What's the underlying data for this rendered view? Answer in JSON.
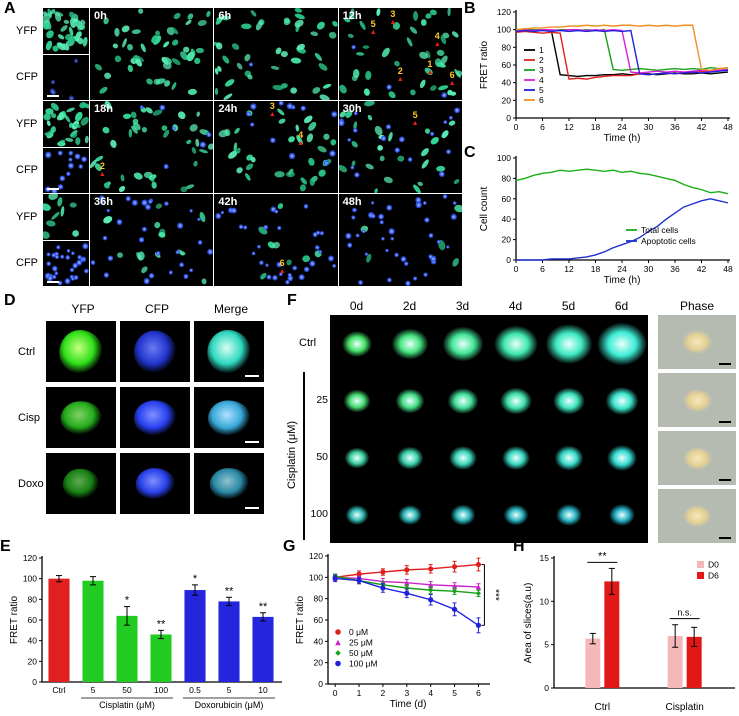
{
  "panel_labels": {
    "A": "A",
    "B": "B",
    "C": "C",
    "D": "D",
    "E": "E",
    "F": "F",
    "G": "G",
    "H": "H"
  },
  "panelA": {
    "side_labels": [
      "YFP",
      "CFP",
      "YFP",
      "CFP",
      "YFP",
      "CFP"
    ],
    "thumbs": [
      {
        "green": 38,
        "blue": 0,
        "seed": 11
      },
      {
        "green": 0,
        "blue": 5,
        "seed": 12,
        "dim": true
      },
      {
        "green": 30,
        "blue": 0,
        "seed": 13
      },
      {
        "green": 0,
        "blue": 14,
        "seed": 14
      },
      {
        "green": 9,
        "blue": 0,
        "seed": 15
      },
      {
        "green": 0,
        "blue": 30,
        "seed": 16
      }
    ],
    "cells": [
      {
        "time": "0h",
        "green": 46,
        "blue": 0,
        "seed": 1,
        "markers": []
      },
      {
        "time": "6h",
        "green": 44,
        "blue": 1,
        "seed": 2,
        "markers": []
      },
      {
        "time": "12h",
        "green": 42,
        "blue": 3,
        "seed": 3,
        "markers": [
          {
            "n": "3",
            "x": 0.44,
            "y": 0.2
          },
          {
            "n": "5",
            "x": 0.28,
            "y": 0.3
          },
          {
            "n": "4",
            "x": 0.8,
            "y": 0.44
          },
          {
            "n": "2",
            "x": 0.5,
            "y": 0.82
          },
          {
            "n": "1",
            "x": 0.74,
            "y": 0.74
          },
          {
            "n": "6",
            "x": 0.92,
            "y": 0.86
          }
        ]
      },
      {
        "time": "18h",
        "green": 40,
        "blue": 6,
        "seed": 4,
        "markers": [
          {
            "n": "2",
            "x": 0.1,
            "y": 0.84
          }
        ]
      },
      {
        "time": "24h",
        "green": 34,
        "blue": 12,
        "seed": 5,
        "markers": [
          {
            "n": "3",
            "x": 0.47,
            "y": 0.18
          },
          {
            "n": "4",
            "x": 0.7,
            "y": 0.5
          }
        ]
      },
      {
        "time": "30h",
        "green": 27,
        "blue": 18,
        "seed": 6,
        "markers": [
          {
            "n": "5",
            "x": 0.62,
            "y": 0.28
          }
        ]
      },
      {
        "time": "36h",
        "green": 14,
        "blue": 30,
        "seed": 7,
        "markers": []
      },
      {
        "time": "42h",
        "green": 8,
        "blue": 34,
        "seed": 8,
        "markers": [
          {
            "n": "6",
            "x": 0.55,
            "y": 0.88
          }
        ]
      },
      {
        "time": "48h",
        "green": 5,
        "blue": 38,
        "seed": 9,
        "markers": []
      }
    ]
  },
  "panelD": {
    "headers": [
      "YFP",
      "CFP",
      "Merge"
    ],
    "rows": [
      {
        "label": "Ctrl",
        "images": [
          {
            "c": "#2ee018",
            "glow": "#c8ff80",
            "w": 0.62,
            "h": 0.72,
            "op": 1
          },
          {
            "c": "#2438d8",
            "glow": "#7080ff",
            "w": 0.6,
            "h": 0.7,
            "op": 0.95
          },
          {
            "c": "#2ed8c0",
            "glow": "#d8fff0",
            "w": 0.62,
            "h": 0.72,
            "op": 1
          }
        ]
      },
      {
        "label": "Cisp",
        "images": [
          {
            "c": "#28c020",
            "glow": "#90e870",
            "w": 0.58,
            "h": 0.55,
            "op": 0.9
          },
          {
            "c": "#2840f0",
            "glow": "#8090ff",
            "w": 0.6,
            "h": 0.58,
            "op": 1
          },
          {
            "c": "#38a8d8",
            "glow": "#b0e0ff",
            "w": 0.6,
            "h": 0.58,
            "op": 1
          }
        ]
      },
      {
        "label": "Doxo",
        "images": [
          {
            "c": "#1e9818",
            "glow": "#70c860",
            "w": 0.52,
            "h": 0.5,
            "op": 0.85
          },
          {
            "c": "#2840e8",
            "glow": "#8090ff",
            "w": 0.55,
            "h": 0.52,
            "op": 1
          },
          {
            "c": "#2f98b8",
            "glow": "#a0d8e8",
            "w": 0.55,
            "h": 0.52,
            "op": 0.9
          }
        ]
      }
    ]
  },
  "panelF": {
    "col_headers": [
      "0d",
      "2d",
      "3d",
      "4d",
      "5d",
      "6d"
    ],
    "phase_header": "Phase",
    "ctrl_label": "Ctrl",
    "group_label": "Cisplatin (μM)",
    "dose_labels": [
      "25",
      "50",
      "100"
    ],
    "rows": [
      {
        "sizes": [
          30,
          37,
          41,
          44,
          47,
          50
        ],
        "colors": [
          "#46e26a",
          "#44e47e",
          "#42e696",
          "#40e8ae",
          "#3eeac2",
          "#3cecd4"
        ]
      },
      {
        "sizes": [
          27,
          29,
          31,
          32,
          32,
          33
        ],
        "colors": [
          "#44da6e",
          "#42dc84",
          "#40de98",
          "#3ee0aa",
          "#3ce2bc",
          "#3ae4ca"
        ]
      },
      {
        "sizes": [
          25,
          27,
          28,
          28,
          29,
          30
        ],
        "colors": [
          "#3ed0a0",
          "#3cd2ac",
          "#3ad4b6",
          "#38d6c0",
          "#36d8c8",
          "#34dad0"
        ]
      },
      {
        "sizes": [
          23,
          24,
          25,
          25,
          26,
          26
        ],
        "colors": [
          "#30b8b0",
          "#2eb6b4",
          "#2cb4b8",
          "#2ab2bc",
          "#28b0c0",
          "#26aec4"
        ]
      }
    ],
    "phase": {
      "bg": "#b6bbb2",
      "slice": "#e6d193",
      "sizes": [
        30,
        29,
        29,
        28
      ]
    }
  },
  "chart_data": [
    {
      "id": "B",
      "type": "line",
      "xlabel": "Time (h)",
      "ylabel": "FRET ratio",
      "xlim": [
        0,
        48
      ],
      "ylim": [
        0,
        120
      ],
      "xticks": [
        0,
        6,
        12,
        18,
        24,
        30,
        36,
        42,
        48
      ],
      "yticks": [
        0,
        20,
        40,
        60,
        80,
        100,
        120
      ],
      "x": [
        0,
        2,
        4,
        6,
        8,
        10,
        12,
        14,
        16,
        18,
        20,
        22,
        24,
        26,
        28,
        30,
        32,
        34,
        36,
        38,
        40,
        42,
        44,
        46,
        48
      ],
      "series": [
        {
          "name": "1",
          "color": "#000000",
          "values": [
            100,
            100,
            99,
            100,
            99,
            49,
            48,
            47,
            48,
            48,
            49,
            49,
            50,
            49,
            50,
            50,
            49,
            50,
            51,
            50,
            50,
            51,
            50,
            51,
            52
          ]
        },
        {
          "name": "2",
          "color": "#e02020",
          "values": [
            97,
            98,
            97,
            96,
            97,
            96,
            44,
            45,
            44,
            46,
            47,
            48,
            48,
            48,
            50,
            49,
            50,
            51,
            50,
            52,
            51,
            53,
            52,
            54,
            55
          ]
        },
        {
          "name": "3",
          "color": "#18a018",
          "values": [
            100,
            101,
            100,
            100,
            99,
            100,
            100,
            99,
            100,
            99,
            100,
            55,
            54,
            55,
            56,
            55,
            54,
            55,
            56,
            55,
            56,
            55,
            57,
            56,
            57
          ]
        },
        {
          "name": "4",
          "color": "#d820d8",
          "values": [
            99,
            100,
            99,
            100,
            100,
            99,
            100,
            100,
            99,
            100,
            99,
            100,
            99,
            52,
            51,
            52,
            53,
            52,
            53,
            52,
            53,
            54,
            53,
            54,
            55
          ]
        },
        {
          "name": "5",
          "color": "#2020dd",
          "values": [
            98,
            99,
            98,
            99,
            98,
            99,
            98,
            99,
            98,
            99,
            98,
            99,
            98,
            99,
            50,
            49,
            50,
            51,
            50,
            51,
            52,
            51,
            52,
            53,
            54
          ]
        },
        {
          "name": "6",
          "color": "#f09020",
          "values": [
            100,
            101,
            102,
            102,
            103,
            103,
            104,
            104,
            105,
            104,
            105,
            104,
            105,
            105,
            104,
            105,
            104,
            105,
            104,
            105,
            105,
            55,
            54,
            56,
            57
          ]
        }
      ]
    },
    {
      "id": "C",
      "type": "line",
      "xlabel": "Time (h)",
      "ylabel": "Cell count",
      "xlim": [
        0,
        48
      ],
      "ylim": [
        0,
        100
      ],
      "xticks": [
        0,
        6,
        12,
        18,
        24,
        30,
        36,
        42,
        48
      ],
      "yticks": [
        0,
        20,
        40,
        60,
        80,
        100
      ],
      "x": [
        0,
        2,
        4,
        6,
        8,
        10,
        12,
        14,
        16,
        18,
        20,
        22,
        24,
        26,
        28,
        30,
        32,
        34,
        36,
        38,
        40,
        42,
        44,
        46,
        48
      ],
      "series": [
        {
          "name": "Total cells",
          "color": "#18b018",
          "values": [
            78,
            80,
            83,
            85,
            86,
            88,
            87,
            88,
            89,
            88,
            87,
            88,
            86,
            87,
            85,
            84,
            82,
            80,
            78,
            74,
            71,
            69,
            66,
            67,
            65
          ]
        },
        {
          "name": "Apoptotic cells",
          "color": "#2030d0",
          "values": [
            0,
            0,
            0,
            0,
            1,
            1,
            1,
            2,
            3,
            5,
            8,
            12,
            15,
            18,
            22,
            28,
            33,
            40,
            46,
            52,
            55,
            58,
            60,
            58,
            56
          ]
        }
      ]
    },
    {
      "id": "E",
      "type": "bar",
      "ylabel": "FRET ratio",
      "ylim": [
        0,
        120
      ],
      "yticks": [
        0,
        20,
        40,
        60,
        80,
        100,
        120
      ],
      "categories": [
        "Ctrl",
        "5",
        "50",
        "100",
        "0.5",
        "5",
        "10"
      ],
      "values": [
        100,
        98,
        64,
        46,
        89,
        78,
        63
      ],
      "errors": [
        3,
        4,
        9,
        4,
        5,
        4,
        4
      ],
      "colors": [
        "#e02020",
        "#22cc22",
        "#22cc22",
        "#22cc22",
        "#2525dd",
        "#2525dd",
        "#2525dd"
      ],
      "sig": [
        "",
        "",
        "*",
        "**",
        "*",
        "**",
        "**"
      ],
      "group_labels": [
        {
          "label": "Cisplatin (μM)",
          "from": 1,
          "to": 3
        },
        {
          "label": "Doxorubicin (μM)",
          "from": 4,
          "to": 6
        }
      ]
    },
    {
      "id": "G",
      "type": "line",
      "xlabel": "Time (d)",
      "ylabel": "FRET ratio",
      "xlim": [
        -0.3,
        6.4
      ],
      "ylim": [
        0,
        120
      ],
      "xticks": [
        0,
        1,
        2,
        3,
        4,
        5,
        6
      ],
      "yticks": [
        0,
        20,
        40,
        60,
        80,
        100,
        120
      ],
      "x": [
        0,
        1,
        2,
        3,
        4,
        5,
        6
      ],
      "series": [
        {
          "name": "0 μM",
          "color": "#e02020",
          "marker": "circle",
          "values": [
            100,
            103,
            105,
            107,
            108,
            110,
            112
          ],
          "err": [
            3,
            3,
            3,
            4,
            4,
            5,
            6
          ]
        },
        {
          "name": "25 μM",
          "color": "#cc22cc",
          "marker": "triangle",
          "values": [
            100,
            99,
            96,
            95,
            93,
            92,
            91
          ],
          "err": [
            2,
            2,
            3,
            3,
            3,
            3,
            3
          ]
        },
        {
          "name": "50 μM",
          "color": "#18a018",
          "marker": "diamond",
          "values": [
            101,
            97,
            93,
            90,
            88,
            87,
            85
          ],
          "err": [
            2,
            3,
            3,
            3,
            3,
            3,
            3
          ]
        },
        {
          "name": "100 μM",
          "color": "#2020dd",
          "marker": "circle",
          "values": [
            99,
            97,
            90,
            85,
            79,
            70,
            55
          ],
          "err": [
            3,
            3,
            4,
            4,
            5,
            6,
            7
          ]
        }
      ],
      "sig_bracket": {
        "x": 6.25,
        "y1": 112,
        "y2": 55,
        "label": "***"
      }
    },
    {
      "id": "H",
      "type": "grouped_bar",
      "ylabel": "Area of slices(a.u)",
      "ylim": [
        0,
        15
      ],
      "yticks": [
        0,
        5,
        10,
        15
      ],
      "groups": [
        "Ctrl",
        "Cisplatin"
      ],
      "series": [
        {
          "name": "D0",
          "color": "#f5b8b8",
          "values": [
            5.7,
            6.0
          ],
          "errors": [
            0.6,
            1.3
          ]
        },
        {
          "name": "D6",
          "color": "#e01818",
          "values": [
            12.3,
            5.9
          ],
          "errors": [
            1.5,
            1.1
          ]
        }
      ],
      "sig": [
        "**",
        "n.s."
      ]
    }
  ]
}
